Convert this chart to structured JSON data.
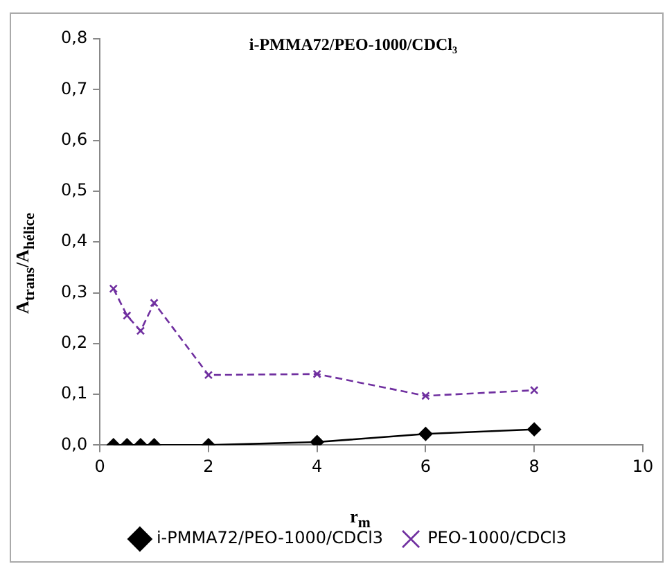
{
  "chart_data": {
    "type": "line",
    "title": "i-PMMA72/PEO-1000/CDCl₃",
    "xlabel": "r$_{m}$",
    "ylabel": "A$_{trans}$/A$_{hélice}$",
    "x": [
      0.25,
      0.5,
      0.75,
      1,
      2,
      4,
      6,
      8
    ],
    "series": [
      {
        "name": "i-PMMA72/PEO-1000/CDCl3",
        "color": "#000000",
        "marker": "diamond",
        "line_style": "solid",
        "values": [
          0,
          0,
          0,
          0,
          0,
          0.006,
          0.022,
          0.031
        ]
      },
      {
        "name": "PEO-1000/CDCl3",
        "color": "#7030a0",
        "marker": "cross",
        "line_style": "dashed",
        "values": [
          0.308,
          0.255,
          0.225,
          0.28,
          0.138,
          0.14,
          0.097,
          0.108
        ]
      }
    ],
    "xlim": [
      0,
      10
    ],
    "xticks": [
      0,
      2,
      4,
      6,
      8,
      10
    ],
    "ylim": [
      0,
      0.8
    ],
    "yticks": [
      {
        "value": 0,
        "label": "0,0"
      },
      {
        "value": 0.1,
        "label": "0,1"
      },
      {
        "value": 0.2,
        "label": "0,2"
      },
      {
        "value": 0.3,
        "label": "0,3"
      },
      {
        "value": 0.4,
        "label": "0,4"
      },
      {
        "value": 0.5,
        "label": "0,5"
      },
      {
        "value": 0.6,
        "label": "0,6"
      },
      {
        "value": 0.7,
        "label": "0,7"
      },
      {
        "value": 0.8,
        "label": "0,8"
      }
    ],
    "grid": false,
    "legend": "bottom"
  }
}
